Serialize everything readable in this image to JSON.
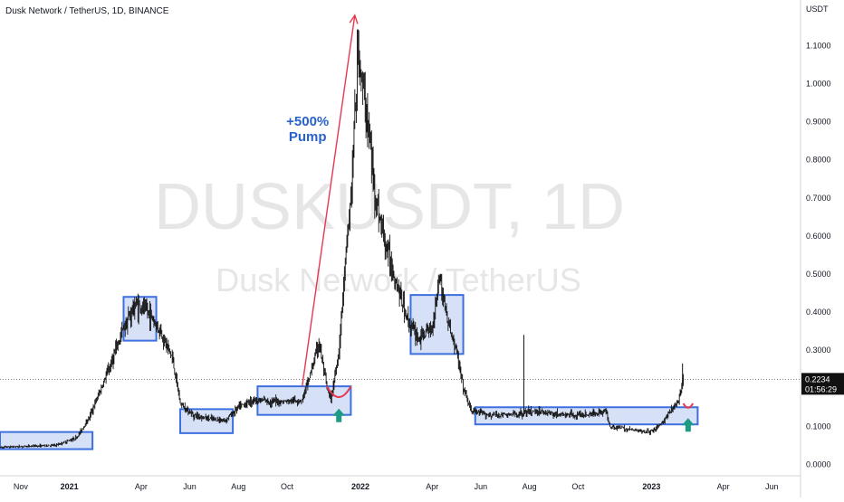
{
  "header": {
    "symbol_title": "Dusk Network / TetherUS, 1D, BINANCE"
  },
  "watermark": {
    "ticker": "DUSKUSDT, 1D",
    "name": "Dusk Network / TetherUS"
  },
  "chart_data": {
    "type": "candlestick",
    "currency_label": "USDT",
    "ylim": [
      -0.03,
      1.22
    ],
    "y_ticks": [
      0.0,
      0.1,
      0.2,
      0.3,
      0.4,
      0.5,
      0.6,
      0.7,
      0.8,
      0.9,
      1.0,
      1.1
    ],
    "y_tick_labels": [
      "0.0000",
      "0.1000",
      "0.2000",
      "0.3000",
      "0.4000",
      "0.5000",
      "0.6000",
      "0.7000",
      "0.8000",
      "0.9000",
      "1.0000",
      "1.1000"
    ],
    "x_ticks": [
      {
        "label": "Nov",
        "date": "2020-11-01",
        "bold": false
      },
      {
        "label": "2021",
        "date": "2021-01-01",
        "bold": true
      },
      {
        "label": "Apr",
        "date": "2021-04-01",
        "bold": false
      },
      {
        "label": "Jun",
        "date": "2021-06-01",
        "bold": false
      },
      {
        "label": "Aug",
        "date": "2021-08-01",
        "bold": false
      },
      {
        "label": "Oct",
        "date": "2021-10-01",
        "bold": false
      },
      {
        "label": "2022",
        "date": "2022-01-01",
        "bold": true
      },
      {
        "label": "Apr",
        "date": "2022-04-01",
        "bold": false
      },
      {
        "label": "Jun",
        "date": "2022-06-01",
        "bold": false
      },
      {
        "label": "Aug",
        "date": "2022-08-01",
        "bold": false
      },
      {
        "label": "Oct",
        "date": "2022-10-01",
        "bold": false
      },
      {
        "label": "2023",
        "date": "2023-01-01",
        "bold": true
      },
      {
        "label": "Apr",
        "date": "2023-04-01",
        "bold": false
      },
      {
        "label": "Jun",
        "date": "2023-06-01",
        "bold": false
      }
    ],
    "x_range": [
      "2020-10-06",
      "2023-07-07"
    ],
    "price_path": [
      [
        "2020-10-06",
        0.045
      ],
      [
        "2020-11-15",
        0.048
      ],
      [
        "2020-12-15",
        0.05
      ],
      [
        "2021-01-10",
        0.07
      ],
      [
        "2021-01-25",
        0.12
      ],
      [
        "2021-02-10",
        0.2
      ],
      [
        "2021-02-25",
        0.28
      ],
      [
        "2021-03-10",
        0.36
      ],
      [
        "2021-03-25",
        0.42
      ],
      [
        "2021-04-10",
        0.4
      ],
      [
        "2021-04-25",
        0.35
      ],
      [
        "2021-05-10",
        0.28
      ],
      [
        "2021-05-20",
        0.16
      ],
      [
        "2021-06-05",
        0.13
      ],
      [
        "2021-06-25",
        0.12
      ],
      [
        "2021-07-15",
        0.115
      ],
      [
        "2021-08-01",
        0.15
      ],
      [
        "2021-08-20",
        0.17
      ],
      [
        "2021-09-10",
        0.165
      ],
      [
        "2021-10-01",
        0.165
      ],
      [
        "2021-10-20",
        0.17
      ],
      [
        "2021-11-01",
        0.25
      ],
      [
        "2021-11-10",
        0.32
      ],
      [
        "2021-11-20",
        0.2
      ],
      [
        "2021-11-25",
        0.17
      ],
      [
        "2021-12-05",
        0.3
      ],
      [
        "2021-12-12",
        0.5
      ],
      [
        "2021-12-20",
        0.7
      ],
      [
        "2021-12-26",
        0.95
      ],
      [
        "2021-12-29",
        1.1
      ],
      [
        "2022-01-03",
        1.0
      ],
      [
        "2022-01-10",
        0.9
      ],
      [
        "2022-01-20",
        0.7
      ],
      [
        "2022-02-01",
        0.58
      ],
      [
        "2022-02-15",
        0.48
      ],
      [
        "2022-03-01",
        0.38
      ],
      [
        "2022-03-15",
        0.33
      ],
      [
        "2022-04-01",
        0.36
      ],
      [
        "2022-04-10",
        0.5
      ],
      [
        "2022-04-20",
        0.38
      ],
      [
        "2022-05-01",
        0.3
      ],
      [
        "2022-05-10",
        0.2
      ],
      [
        "2022-05-20",
        0.14
      ],
      [
        "2022-06-10",
        0.13
      ],
      [
        "2022-07-10",
        0.13
      ],
      [
        "2022-08-10",
        0.14
      ],
      [
        "2022-09-10",
        0.13
      ],
      [
        "2022-10-10",
        0.13
      ],
      [
        "2022-11-05",
        0.14
      ],
      [
        "2022-11-10",
        0.1
      ],
      [
        "2022-12-10",
        0.09
      ],
      [
        "2022-12-31",
        0.085
      ],
      [
        "2023-01-15",
        0.11
      ],
      [
        "2023-01-25",
        0.14
      ],
      [
        "2023-02-05",
        0.17
      ],
      [
        "2023-02-10",
        0.2234
      ]
    ],
    "spike_wicks": [
      {
        "date": "2022-07-25",
        "high": 0.34
      },
      {
        "date": "2023-02-09",
        "high": 0.265
      }
    ],
    "consolidation_boxes": [
      {
        "start": "2020-10-06",
        "end": "2021-01-30",
        "low": 0.04,
        "high": 0.085
      },
      {
        "start": "2021-03-10",
        "end": "2021-04-20",
        "low": 0.325,
        "high": 0.44
      },
      {
        "start": "2021-05-20",
        "end": "2021-07-25",
        "low": 0.082,
        "high": 0.145
      },
      {
        "start": "2021-08-25",
        "end": "2021-12-20",
        "low": 0.13,
        "high": 0.205
      },
      {
        "start": "2022-03-05",
        "end": "2022-05-10",
        "low": 0.29,
        "high": 0.445
      },
      {
        "start": "2022-05-25",
        "end": "2023-02-28",
        "low": 0.105,
        "high": 0.15
      }
    ],
    "pump_arrow": {
      "from_date": "2021-10-20",
      "from_price": 0.205,
      "to_date": "2021-12-25",
      "to_price": 1.18
    },
    "pump_annotation": {
      "line1": "+500%",
      "line2": "Pump",
      "date": "2021-10-20",
      "price": 0.89
    },
    "cup_marks": [
      {
        "date": "2021-12-05",
        "price": 0.205,
        "width_days": 30
      },
      {
        "date": "2023-02-16",
        "price": 0.16,
        "width_days": 12
      }
    ],
    "up_arrows": [
      {
        "date": "2021-12-05",
        "price": 0.125
      },
      {
        "date": "2023-02-16",
        "price": 0.1
      }
    ],
    "last_price": {
      "value": 0.2234,
      "label": "0.2234",
      "countdown": "01:56:29"
    },
    "colors": {
      "candles": "#111111",
      "box_fill": "#cfdcf6",
      "box_stroke": "#3d6fe0",
      "pump_arrow": "#e53950",
      "pump_text": "#2962c9",
      "cup": "#e53950",
      "up_arrow": "#1e9b84",
      "price_label_bg": "#111111",
      "price_label_text": "#ffffff",
      "watermark": "#e6e6e6",
      "axis_text": "#131722"
    }
  }
}
